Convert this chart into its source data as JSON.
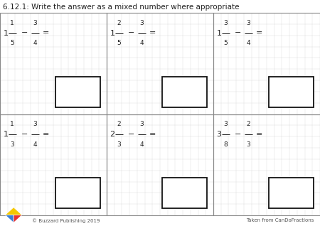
{
  "title": "6.12.1: Write the answer as a mixed number where appropriate",
  "title_fontsize": 7.5,
  "background_color": "#ffffff",
  "grid_color": "#cccccc",
  "cell_border_color": "#888888",
  "text_color": "#222222",
  "problems": [
    {
      "whole": "1",
      "num1": "1",
      "den1": "5",
      "num2": "3",
      "den2": "4"
    },
    {
      "whole": "1",
      "num1": "2",
      "den1": "5",
      "num2": "3",
      "den2": "4"
    },
    {
      "whole": "1",
      "num1": "3",
      "den1": "5",
      "num2": "3",
      "den2": "4"
    },
    {
      "whole": "1",
      "num1": "1",
      "den1": "3",
      "num2": "3",
      "den2": "4"
    },
    {
      "whole": "2",
      "num1": "2",
      "den1": "3",
      "num2": "3",
      "den2": "4"
    },
    {
      "whole": "3",
      "num1": "3",
      "den1": "8",
      "num2": "2",
      "den2": "3"
    }
  ],
  "footer_left": "© Buzzard Publishing 2019",
  "footer_right": "Taken from CanDoFractions",
  "footer_fontsize": 5.0,
  "n_grid_cols": 14,
  "n_grid_rows": 9
}
